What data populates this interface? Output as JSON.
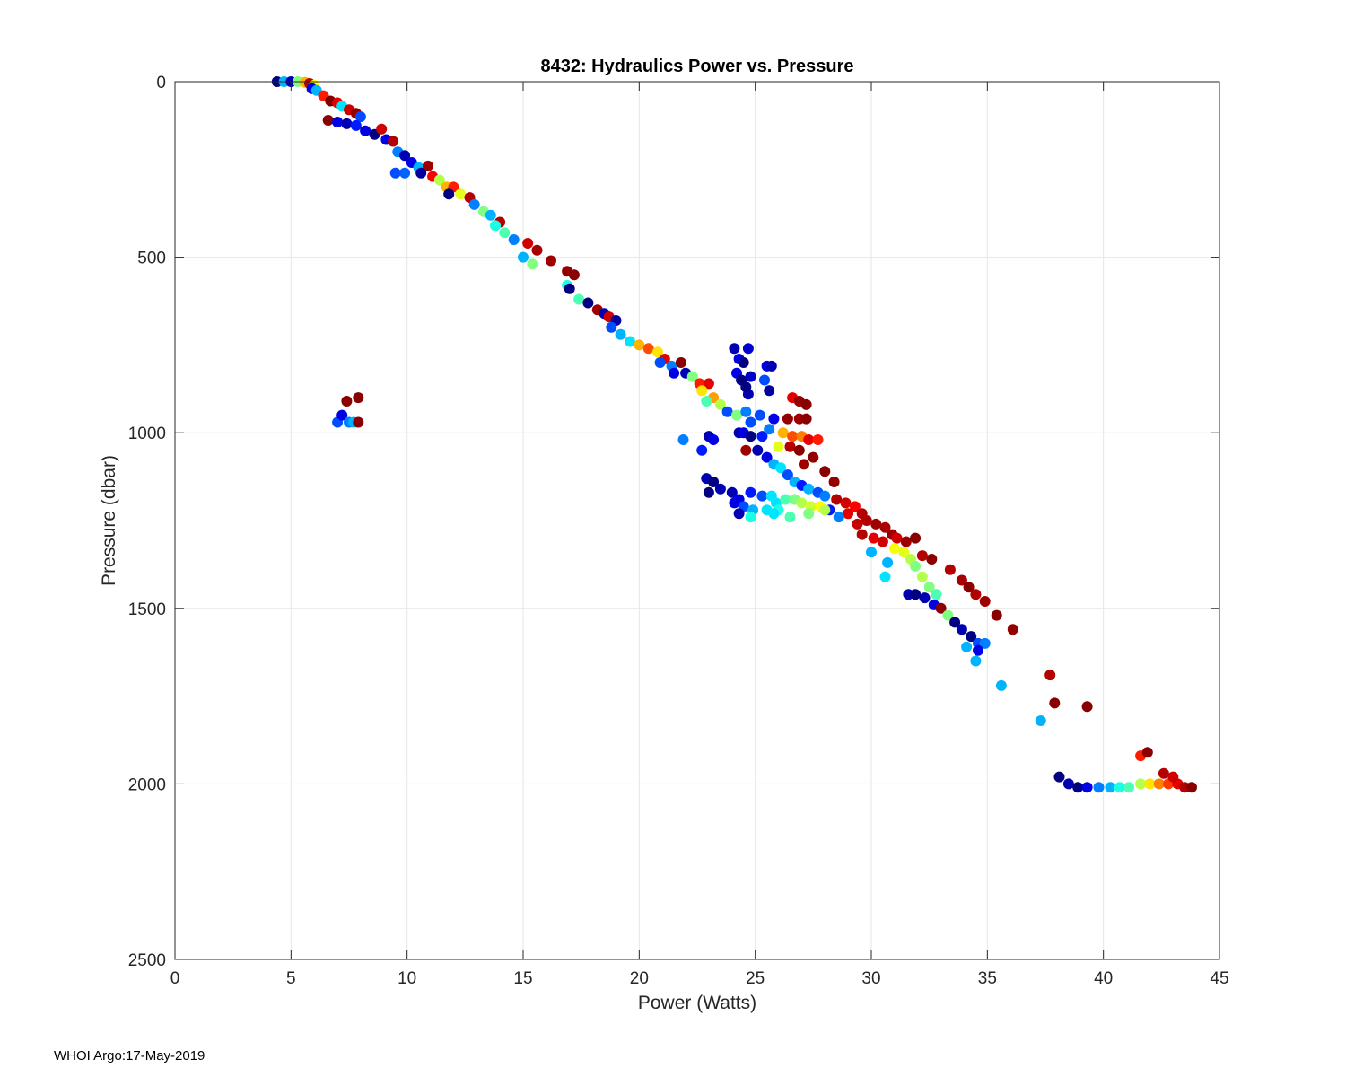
{
  "chart_data": {
    "type": "scatter",
    "title": "8432: Hydraulics Power vs. Pressure",
    "xlabel": "Power (Watts)",
    "ylabel": "Pressure (dbar)",
    "xlim": [
      0,
      45
    ],
    "ylim": [
      0,
      2500
    ],
    "y_reversed": true,
    "grid": true,
    "colormap": "jet",
    "xticks": [
      0,
      5,
      10,
      15,
      20,
      25,
      30,
      35,
      40,
      45
    ],
    "yticks": [
      0,
      500,
      1000,
      1500,
      2000,
      2500
    ],
    "xtick_labels": [
      "0",
      "5",
      "10",
      "15",
      "20",
      "25",
      "30",
      "35",
      "40",
      "45"
    ],
    "ytick_labels": [
      "0",
      "500",
      "1000",
      "1500",
      "2000",
      "2500"
    ],
    "points": [
      [
        4.4,
        0,
        0.0
      ],
      [
        4.7,
        0,
        0.3
      ],
      [
        5.0,
        0,
        0.05
      ],
      [
        5.3,
        0,
        0.5
      ],
      [
        5.6,
        2,
        0.7
      ],
      [
        5.8,
        5,
        0.95
      ],
      [
        6.0,
        10,
        0.62
      ],
      [
        5.9,
        20,
        0.1
      ],
      [
        6.1,
        25,
        0.3
      ],
      [
        6.4,
        40,
        0.85
      ],
      [
        6.7,
        55,
        1.0
      ],
      [
        7.0,
        60,
        0.9
      ],
      [
        7.2,
        70,
        0.35
      ],
      [
        7.5,
        80,
        0.92
      ],
      [
        7.8,
        90,
        0.98
      ],
      [
        8.0,
        100,
        0.2
      ],
      [
        6.6,
        110,
        0.99
      ],
      [
        7.0,
        115,
        0.1
      ],
      [
        7.4,
        120,
        0.05
      ],
      [
        7.8,
        125,
        0.15
      ],
      [
        8.2,
        140,
        0.1
      ],
      [
        8.6,
        150,
        0.0
      ],
      [
        8.9,
        135,
        0.92
      ],
      [
        9.1,
        165,
        0.1
      ],
      [
        9.4,
        170,
        0.95
      ],
      [
        9.6,
        200,
        0.25
      ],
      [
        9.9,
        210,
        0.05
      ],
      [
        10.2,
        230,
        0.1
      ],
      [
        10.5,
        245,
        0.3
      ],
      [
        10.9,
        240,
        0.97
      ],
      [
        9.5,
        260,
        0.2
      ],
      [
        9.9,
        260,
        0.22
      ],
      [
        10.6,
        260,
        0.03
      ],
      [
        11.1,
        270,
        0.88
      ],
      [
        11.4,
        280,
        0.55
      ],
      [
        11.7,
        300,
        0.7
      ],
      [
        12.0,
        300,
        0.85
      ],
      [
        11.8,
        320,
        0.0
      ],
      [
        12.3,
        320,
        0.6
      ],
      [
        12.7,
        330,
        0.95
      ],
      [
        12.9,
        350,
        0.25
      ],
      [
        13.3,
        370,
        0.5
      ],
      [
        13.6,
        380,
        0.3
      ],
      [
        14.0,
        400,
        0.95
      ],
      [
        13.8,
        410,
        0.4
      ],
      [
        14.2,
        430,
        0.45
      ],
      [
        14.6,
        450,
        0.25
      ],
      [
        15.2,
        460,
        0.92
      ],
      [
        15.6,
        480,
        0.96
      ],
      [
        15.0,
        500,
        0.3
      ],
      [
        15.4,
        520,
        0.5
      ],
      [
        16.2,
        510,
        0.97
      ],
      [
        16.9,
        540,
        0.98
      ],
      [
        17.2,
        550,
        0.99
      ],
      [
        16.9,
        580,
        0.4
      ],
      [
        17.0,
        590,
        0.0
      ],
      [
        17.4,
        620,
        0.45
      ],
      [
        17.8,
        630,
        0.0
      ],
      [
        18.2,
        650,
        0.97
      ],
      [
        18.5,
        660,
        0.05
      ],
      [
        18.7,
        670,
        0.92
      ],
      [
        19.0,
        680,
        0.03
      ],
      [
        18.8,
        700,
        0.2
      ],
      [
        19.2,
        720,
        0.3
      ],
      [
        19.6,
        740,
        0.35
      ],
      [
        20.0,
        750,
        0.7
      ],
      [
        20.4,
        760,
        0.8
      ],
      [
        20.8,
        770,
        0.65
      ],
      [
        21.1,
        790,
        0.9
      ],
      [
        20.9,
        800,
        0.2
      ],
      [
        21.4,
        810,
        0.25
      ],
      [
        21.8,
        800,
        0.99
      ],
      [
        22.0,
        830,
        0.05
      ],
      [
        21.5,
        830,
        0.1
      ],
      [
        22.3,
        840,
        0.5
      ],
      [
        22.6,
        860,
        0.85
      ],
      [
        23.0,
        860,
        0.9
      ],
      [
        22.7,
        880,
        0.65
      ],
      [
        23.2,
        900,
        0.72
      ],
      [
        22.9,
        910,
        0.45
      ],
      [
        23.5,
        920,
        0.55
      ],
      [
        23.8,
        940,
        0.2
      ],
      [
        24.2,
        950,
        0.5
      ],
      [
        24.6,
        940,
        0.25
      ],
      [
        24.1,
        760,
        0.05
      ],
      [
        24.3,
        790,
        0.1
      ],
      [
        24.7,
        760,
        0.08
      ],
      [
        24.5,
        800,
        0.0
      ],
      [
        24.8,
        840,
        0.07
      ],
      [
        24.2,
        830,
        0.1
      ],
      [
        24.4,
        850,
        0.0
      ],
      [
        25.5,
        810,
        0.1
      ],
      [
        25.7,
        810,
        0.05
      ],
      [
        25.4,
        850,
        0.2
      ],
      [
        24.7,
        890,
        0.05
      ],
      [
        24.6,
        870,
        0.0
      ],
      [
        25.6,
        880,
        0.03
      ],
      [
        26.6,
        900,
        0.9
      ],
      [
        26.9,
        910,
        0.98
      ],
      [
        27.2,
        920,
        0.99
      ],
      [
        26.4,
        960,
        0.98
      ],
      [
        26.9,
        960,
        0.97
      ],
      [
        27.2,
        960,
        0.99
      ],
      [
        25.8,
        960,
        0.1
      ],
      [
        25.2,
        950,
        0.2
      ],
      [
        24.8,
        970,
        0.2
      ],
      [
        24.3,
        1000,
        0.05
      ],
      [
        24.5,
        1000,
        0.1
      ],
      [
        24.8,
        1010,
        0.0
      ],
      [
        25.3,
        1010,
        0.15
      ],
      [
        25.6,
        990,
        0.25
      ],
      [
        26.2,
        1000,
        0.7
      ],
      [
        26.0,
        1040,
        0.6
      ],
      [
        26.6,
        1010,
        0.8
      ],
      [
        27.0,
        1010,
        0.75
      ],
      [
        27.3,
        1020,
        0.9
      ],
      [
        27.7,
        1020,
        0.85
      ],
      [
        26.5,
        1040,
        0.95
      ],
      [
        26.9,
        1050,
        0.99
      ],
      [
        23.0,
        1010,
        0.05
      ],
      [
        23.2,
        1020,
        0.1
      ],
      [
        21.9,
        1020,
        0.25
      ],
      [
        22.7,
        1050,
        0.15
      ],
      [
        24.6,
        1050,
        0.97
      ],
      [
        25.1,
        1050,
        0.05
      ],
      [
        25.5,
        1070,
        0.1
      ],
      [
        25.8,
        1090,
        0.3
      ],
      [
        26.1,
        1100,
        0.35
      ],
      [
        27.1,
        1090,
        0.97
      ],
      [
        27.5,
        1070,
        0.98
      ],
      [
        28.0,
        1110,
        0.99
      ],
      [
        28.4,
        1140,
        0.98
      ],
      [
        26.4,
        1120,
        0.2
      ],
      [
        26.7,
        1140,
        0.3
      ],
      [
        27.0,
        1150,
        0.15
      ],
      [
        27.3,
        1160,
        0.3
      ],
      [
        27.7,
        1170,
        0.2
      ],
      [
        28.0,
        1180,
        0.25
      ],
      [
        28.5,
        1190,
        0.95
      ],
      [
        28.9,
        1200,
        0.92
      ],
      [
        29.3,
        1210,
        0.88
      ],
      [
        29.0,
        1230,
        0.9
      ],
      [
        29.6,
        1230,
        0.95
      ],
      [
        28.6,
        1240,
        0.25
      ],
      [
        28.2,
        1220,
        0.15
      ],
      [
        22.9,
        1130,
        0.05
      ],
      [
        23.2,
        1140,
        0.0
      ],
      [
        23.5,
        1160,
        0.05
      ],
      [
        23.0,
        1170,
        0.0
      ],
      [
        24.0,
        1170,
        0.05
      ],
      [
        24.3,
        1190,
        0.1
      ],
      [
        24.8,
        1170,
        0.15
      ],
      [
        25.3,
        1180,
        0.2
      ],
      [
        25.7,
        1180,
        0.35
      ],
      [
        25.9,
        1200,
        0.35
      ],
      [
        26.3,
        1190,
        0.45
      ],
      [
        26.7,
        1190,
        0.5
      ],
      [
        27.0,
        1200,
        0.55
      ],
      [
        27.4,
        1210,
        0.58
      ],
      [
        27.8,
        1210,
        0.62
      ],
      [
        24.1,
        1200,
        0.1
      ],
      [
        24.5,
        1210,
        0.2
      ],
      [
        24.9,
        1220,
        0.3
      ],
      [
        25.5,
        1220,
        0.35
      ],
      [
        26.0,
        1220,
        0.4
      ],
      [
        24.3,
        1230,
        0.05
      ],
      [
        24.8,
        1240,
        0.4
      ],
      [
        25.8,
        1230,
        0.35
      ],
      [
        26.5,
        1240,
        0.45
      ],
      [
        27.3,
        1230,
        0.5
      ],
      [
        28.0,
        1220,
        0.55
      ],
      [
        29.4,
        1260,
        0.93
      ],
      [
        29.8,
        1250,
        0.95
      ],
      [
        30.2,
        1260,
        0.97
      ],
      [
        30.6,
        1270,
        0.96
      ],
      [
        30.9,
        1290,
        0.97
      ],
      [
        31.1,
        1300,
        0.92
      ],
      [
        31.5,
        1310,
        0.97
      ],
      [
        31.9,
        1300,
        0.99
      ],
      [
        32.2,
        1350,
        0.95
      ],
      [
        32.6,
        1360,
        0.99
      ],
      [
        29.6,
        1290,
        0.95
      ],
      [
        30.1,
        1300,
        0.9
      ],
      [
        30.5,
        1310,
        0.92
      ],
      [
        31.0,
        1330,
        0.62
      ],
      [
        31.4,
        1340,
        0.6
      ],
      [
        31.7,
        1360,
        0.55
      ],
      [
        31.9,
        1380,
        0.5
      ],
      [
        32.2,
        1410,
        0.55
      ],
      [
        32.5,
        1440,
        0.5
      ],
      [
        32.8,
        1460,
        0.45
      ],
      [
        30.0,
        1340,
        0.3
      ],
      [
        30.7,
        1370,
        0.3
      ],
      [
        30.6,
        1410,
        0.35
      ],
      [
        31.6,
        1460,
        0.05
      ],
      [
        31.9,
        1460,
        0.0
      ],
      [
        32.3,
        1470,
        0.05
      ],
      [
        32.7,
        1490,
        0.1
      ],
      [
        33.0,
        1500,
        0.99
      ],
      [
        33.3,
        1520,
        0.5
      ],
      [
        33.6,
        1540,
        0.0
      ],
      [
        33.4,
        1390,
        0.95
      ],
      [
        33.9,
        1420,
        0.96
      ],
      [
        34.2,
        1440,
        0.99
      ],
      [
        34.5,
        1460,
        0.95
      ],
      [
        34.9,
        1480,
        0.97
      ],
      [
        35.4,
        1520,
        0.99
      ],
      [
        36.1,
        1560,
        0.98
      ],
      [
        33.9,
        1560,
        0.05
      ],
      [
        34.3,
        1580,
        0.0
      ],
      [
        34.6,
        1600,
        0.2
      ],
      [
        34.9,
        1600,
        0.25
      ],
      [
        34.6,
        1620,
        0.1
      ],
      [
        34.1,
        1610,
        0.3
      ],
      [
        34.5,
        1650,
        0.3
      ],
      [
        35.6,
        1720,
        0.3
      ],
      [
        37.3,
        1820,
        0.3
      ],
      [
        37.7,
        1690,
        0.95
      ],
      [
        37.9,
        1770,
        0.99
      ],
      [
        39.3,
        1780,
        0.99
      ],
      [
        38.1,
        1980,
        0.0
      ],
      [
        38.5,
        2000,
        0.05
      ],
      [
        38.9,
        2010,
        0.0
      ],
      [
        39.3,
        2010,
        0.1
      ],
      [
        39.8,
        2010,
        0.25
      ],
      [
        40.3,
        2010,
        0.3
      ],
      [
        40.7,
        2010,
        0.4
      ],
      [
        41.1,
        2010,
        0.45
      ],
      [
        41.6,
        2000,
        0.55
      ],
      [
        42.0,
        2000,
        0.65
      ],
      [
        42.4,
        2000,
        0.75
      ],
      [
        42.8,
        2000,
        0.82
      ],
      [
        43.2,
        2000,
        0.9
      ],
      [
        43.5,
        2010,
        0.95
      ],
      [
        43.8,
        2010,
        0.99
      ],
      [
        41.6,
        1920,
        0.85
      ],
      [
        41.9,
        1910,
        0.99
      ],
      [
        42.6,
        1970,
        0.95
      ],
      [
        43.0,
        1980,
        0.92
      ],
      [
        7.0,
        970,
        0.2
      ],
      [
        7.2,
        950,
        0.1
      ],
      [
        7.5,
        970,
        0.25
      ],
      [
        7.7,
        970,
        0.3
      ],
      [
        7.4,
        910,
        0.99
      ],
      [
        7.9,
        900,
        0.99
      ],
      [
        7.9,
        970,
        0.99
      ]
    ]
  },
  "footer": "WHOI Argo:17-May-2019"
}
